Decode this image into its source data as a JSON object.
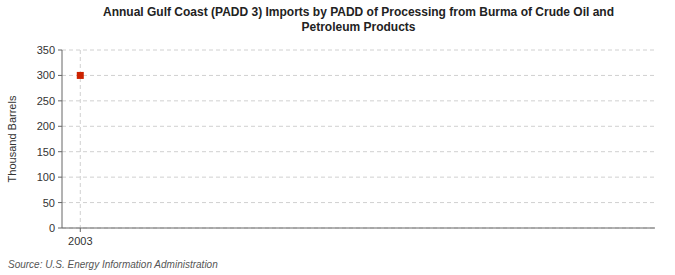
{
  "chart_data": {
    "type": "scatter",
    "title": "Annual Gulf Coast (PADD 3) Imports by PADD of Processing from Burma of Crude Oil and\nPetroleum Products",
    "y_label": "Thousand Barrels",
    "source": "Source: U.S. Energy Information Administration",
    "x": [
      2003
    ],
    "values": [
      300
    ],
    "xlim": [
      2002.3,
      2025
    ],
    "xticks": [
      2003
    ],
    "ylim": [
      0,
      350
    ],
    "yticks": [
      0,
      50,
      100,
      150,
      200,
      250,
      300,
      350
    ],
    "color": "#cc2200",
    "marker": "square",
    "grid": true
  }
}
